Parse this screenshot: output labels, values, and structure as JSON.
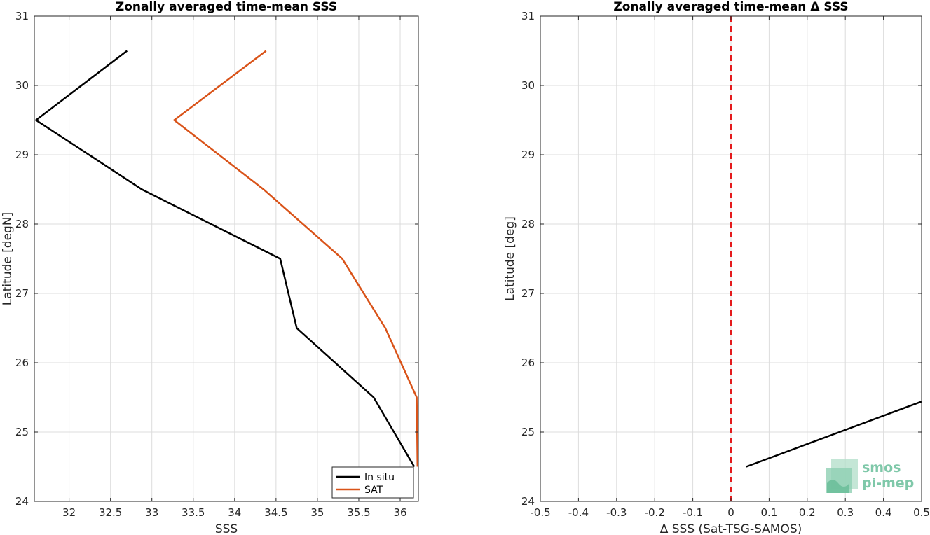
{
  "chart_data": [
    {
      "type": "line",
      "title": "Zonally averaged time-mean SSS",
      "xlabel": "SSS",
      "ylabel": "Latitude [degN]",
      "xlim": [
        31.58,
        36.22
      ],
      "ylim": [
        24,
        31
      ],
      "xticks": [
        32,
        32.5,
        33,
        33.5,
        34,
        34.5,
        35,
        35.5,
        36
      ],
      "yticks": [
        24,
        25,
        26,
        27,
        28,
        29,
        30,
        31
      ],
      "grid": true,
      "legend": "bottom-right",
      "series": [
        {
          "name": "In situ",
          "color": "#000000",
          "x": [
            32.7,
            31.6,
            32.88,
            34.55,
            34.75,
            35.68,
            36.17
          ],
          "y": [
            30.5,
            29.5,
            28.5,
            27.5,
            26.5,
            25.5,
            24.5
          ]
        },
        {
          "name": "SAT",
          "color": "#d95319",
          "x": [
            34.38,
            33.27,
            34.35,
            35.3,
            35.82,
            36.2,
            36.21
          ],
          "y": [
            30.5,
            29.5,
            28.5,
            27.5,
            26.5,
            25.5,
            24.5
          ]
        }
      ]
    },
    {
      "type": "line",
      "title": "Zonally averaged time-mean Δ SSS",
      "xlabel": "Δ SSS (Sat-TSG-SAMOS)",
      "ylabel": "Latitude [deg]",
      "xlim": [
        -0.5,
        0.5
      ],
      "ylim": [
        24,
        31
      ],
      "xticks": [
        -0.5,
        -0.4,
        -0.3,
        -0.2,
        -0.1,
        0,
        0.1,
        0.2,
        0.3,
        0.4,
        0.5
      ],
      "yticks": [
        24,
        25,
        26,
        27,
        28,
        29,
        30,
        31
      ],
      "grid": true,
      "reference_line": {
        "x": 0,
        "color": "#e41a1c",
        "style": "dashed"
      },
      "series": [
        {
          "color": "#000000",
          "x": [
            0.04,
            0.5
          ],
          "y": [
            24.5,
            25.44
          ]
        }
      ]
    }
  ],
  "logo": {
    "line1": "smos",
    "line2": "pi-mep",
    "color": "#7fc8a9"
  }
}
